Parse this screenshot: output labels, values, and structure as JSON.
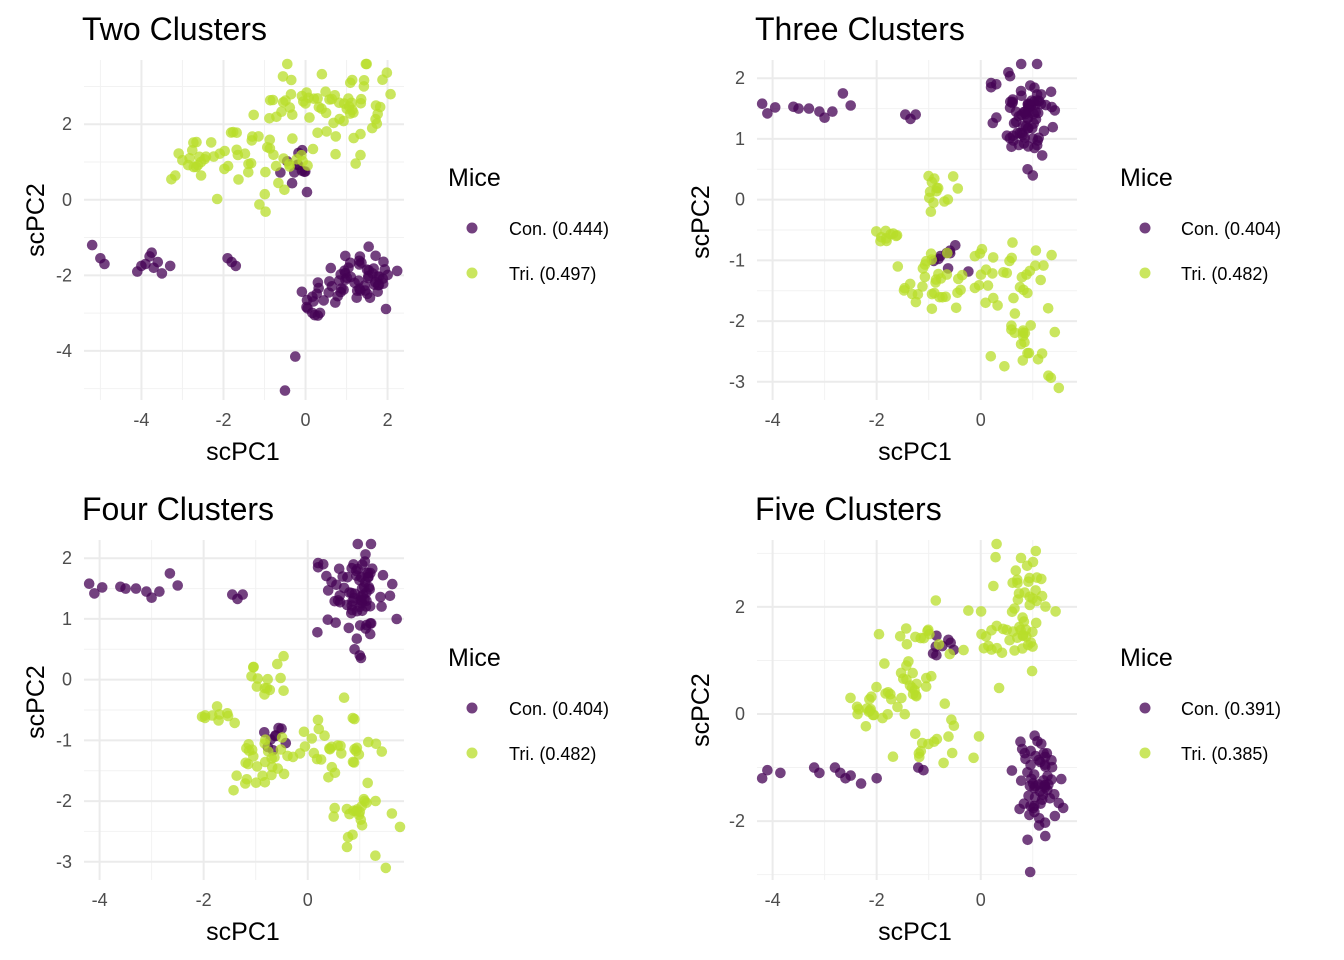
{
  "colors": {
    "con": "#440154",
    "tri": "#b8de29",
    "point_opacity": 0.75
  },
  "chart_data": [
    {
      "type": "scatter",
      "title": "Two Clusters",
      "xlabel": "scPC1",
      "ylabel": "scPC2",
      "xlim": [
        -5.4,
        2.4
      ],
      "ylim": [
        -5.3,
        3.7
      ],
      "xticks": [
        -4,
        -2,
        0,
        2
      ],
      "yticks": [
        -4,
        -2,
        0,
        2
      ],
      "grid": true,
      "legend": {
        "title": "Mice",
        "position": "right",
        "items": [
          {
            "label": "Con. (0.444)",
            "series": "con"
          },
          {
            "label": "Tri. (0.497)",
            "series": "tri"
          }
        ]
      },
      "series": [
        {
          "name": "Con. (0.444)",
          "key": "con",
          "clusters": [
            {
              "cx": 1.3,
              "cy": -2.1,
              "sx": 0.5,
              "sy": 0.35,
              "n": 55
            },
            {
              "cx": 0.2,
              "cy": -2.6,
              "sx": 0.25,
              "sy": 0.3,
              "n": 14
            },
            {
              "cx": -0.1,
              "cy": 1.0,
              "sx": 0.25,
              "sy": 0.3,
              "n": 12
            }
          ],
          "points": [
            [
              -5.2,
              -1.2
            ],
            [
              -5.0,
              -1.55
            ],
            [
              -4.9,
              -1.7
            ],
            [
              -4.1,
              -1.9
            ],
            [
              -3.9,
              -1.7
            ],
            [
              -4.0,
              -1.75
            ],
            [
              -3.8,
              -1.5
            ],
            [
              -3.75,
              -1.4
            ],
            [
              -3.6,
              -1.65
            ],
            [
              -3.7,
              -1.8
            ],
            [
              -3.5,
              -1.95
            ],
            [
              -3.3,
              -1.75
            ],
            [
              -1.9,
              -1.55
            ],
            [
              -1.8,
              -1.65
            ],
            [
              -1.7,
              -1.75
            ],
            [
              -0.25,
              -4.15
            ],
            [
              -0.5,
              -5.05
            ]
          ]
        },
        {
          "name": "Tri. (0.497)",
          "key": "tri",
          "clusters": [
            {
              "cx": 1.2,
              "cy": 2.4,
              "sx": 0.5,
              "sy": 0.6,
              "n": 45
            },
            {
              "cx": -0.2,
              "cy": 2.4,
              "sx": 0.45,
              "sy": 0.55,
              "n": 25
            },
            {
              "cx": -1.5,
              "cy": 1.1,
              "sx": 0.6,
              "sy": 0.45,
              "n": 40
            },
            {
              "cx": -2.9,
              "cy": 1.0,
              "sx": 0.3,
              "sy": 0.25,
              "n": 14
            }
          ],
          "points": []
        }
      ]
    },
    {
      "type": "scatter",
      "title": "Three Clusters",
      "xlabel": "scPC1",
      "ylabel": "scPC2",
      "xlim": [
        -4.3,
        1.85
      ],
      "ylim": [
        -3.3,
        2.3
      ],
      "xticks": [
        -4,
        -2,
        0
      ],
      "yticks": [
        -3,
        -2,
        -1,
        0,
        1,
        2
      ],
      "grid": true,
      "legend": {
        "title": "Mice",
        "position": "right",
        "items": [
          {
            "label": "Con. (0.404)",
            "series": "con"
          },
          {
            "label": "Tri. (0.482)",
            "series": "tri"
          }
        ]
      },
      "series": [
        {
          "name": "Con. (0.404)",
          "key": "con",
          "clusters": [
            {
              "cx": 0.9,
              "cy": 1.35,
              "sx": 0.28,
              "sy": 0.35,
              "n": 75
            },
            {
              "cx": -0.6,
              "cy": -0.95,
              "sx": 0.2,
              "sy": 0.12,
              "n": 9
            }
          ],
          "points": [
            [
              -4.2,
              1.58
            ],
            [
              -4.1,
              1.42
            ],
            [
              -3.95,
              1.52
            ],
            [
              -3.6,
              1.53
            ],
            [
              -3.5,
              1.5
            ],
            [
              -3.3,
              1.5
            ],
            [
              -3.1,
              1.45
            ],
            [
              -3.0,
              1.35
            ],
            [
              -2.85,
              1.45
            ],
            [
              -2.65,
              1.75
            ],
            [
              -2.5,
              1.55
            ],
            [
              -1.45,
              1.4
            ],
            [
              -1.35,
              1.33
            ],
            [
              -1.25,
              1.4
            ],
            [
              0.2,
              1.92
            ],
            [
              0.3,
              1.9
            ],
            [
              0.2,
              1.85
            ],
            [
              0.9,
              0.5
            ],
            [
              1.0,
              0.4
            ]
          ]
        },
        {
          "name": "Tri. (0.482)",
          "key": "tri",
          "clusters": [
            {
              "cx": -0.8,
              "cy": 0.05,
              "sx": 0.15,
              "sy": 0.2,
              "n": 14
            },
            {
              "cx": -1.8,
              "cy": -0.6,
              "sx": 0.15,
              "sy": 0.08,
              "n": 10
            },
            {
              "cx": -0.9,
              "cy": -1.4,
              "sx": 0.3,
              "sy": 0.25,
              "n": 30
            },
            {
              "cx": 0.6,
              "cy": -1.2,
              "sx": 0.4,
              "sy": 0.3,
              "n": 30
            },
            {
              "cx": 1.0,
              "cy": -2.3,
              "sx": 0.35,
              "sy": 0.4,
              "n": 22
            }
          ],
          "points": [
            [
              1.5,
              -3.1
            ],
            [
              1.3,
              -2.9
            ]
          ]
        }
      ]
    },
    {
      "type": "scatter",
      "title": "Four Clusters",
      "xlabel": "scPC1",
      "ylabel": "scPC2",
      "xlim": [
        -4.3,
        1.85
      ],
      "ylim": [
        -3.3,
        2.3
      ],
      "xticks": [
        -4,
        -2,
        0
      ],
      "yticks": [
        -3,
        -2,
        -1,
        0,
        1,
        2
      ],
      "grid": true,
      "legend": {
        "title": "Mice",
        "position": "right",
        "items": [
          {
            "label": "Con. (0.404)",
            "series": "con"
          },
          {
            "label": "Tri. (0.482)",
            "series": "tri"
          }
        ]
      },
      "series": [
        {
          "name": "Con. (0.404)",
          "key": "con",
          "clusters": [
            {
              "cx": 0.9,
              "cy": 1.35,
              "sx": 0.28,
              "sy": 0.35,
              "n": 75
            },
            {
              "cx": -0.6,
              "cy": -0.95,
              "sx": 0.2,
              "sy": 0.12,
              "n": 9
            }
          ],
          "points": [
            [
              -4.2,
              1.58
            ],
            [
              -4.1,
              1.42
            ],
            [
              -3.95,
              1.52
            ],
            [
              -3.6,
              1.53
            ],
            [
              -3.5,
              1.5
            ],
            [
              -3.3,
              1.5
            ],
            [
              -3.1,
              1.45
            ],
            [
              -3.0,
              1.35
            ],
            [
              -2.85,
              1.45
            ],
            [
              -2.65,
              1.75
            ],
            [
              -2.5,
              1.55
            ],
            [
              -1.45,
              1.4
            ],
            [
              -1.35,
              1.33
            ],
            [
              -1.25,
              1.4
            ],
            [
              0.2,
              1.92
            ],
            [
              0.3,
              1.9
            ],
            [
              0.2,
              1.85
            ],
            [
              0.9,
              0.5
            ],
            [
              1.0,
              0.4
            ]
          ]
        },
        {
          "name": "Tri. (0.482)",
          "key": "tri",
          "clusters": [
            {
              "cx": -0.8,
              "cy": 0.05,
              "sx": 0.15,
              "sy": 0.2,
              "n": 14
            },
            {
              "cx": -1.8,
              "cy": -0.6,
              "sx": 0.15,
              "sy": 0.08,
              "n": 10
            },
            {
              "cx": -0.9,
              "cy": -1.4,
              "sx": 0.3,
              "sy": 0.25,
              "n": 30
            },
            {
              "cx": 0.6,
              "cy": -1.2,
              "sx": 0.4,
              "sy": 0.3,
              "n": 30
            },
            {
              "cx": 1.0,
              "cy": -2.3,
              "sx": 0.35,
              "sy": 0.4,
              "n": 22
            }
          ],
          "points": [
            [
              1.5,
              -3.1
            ],
            [
              1.3,
              -2.9
            ]
          ]
        }
      ]
    },
    {
      "type": "scatter",
      "title": "Five Clusters",
      "xlabel": "scPC1",
      "ylabel": "scPC2",
      "xlim": [
        -4.3,
        1.85
      ],
      "ylim": [
        -3.1,
        3.25
      ],
      "xticks": [
        -4,
        -2,
        0
      ],
      "yticks": [
        -2,
        0,
        2
      ],
      "grid": true,
      "legend": {
        "title": "Mice",
        "position": "right",
        "items": [
          {
            "label": "Con. (0.391)",
            "series": "con"
          },
          {
            "label": "Tri. (0.385)",
            "series": "tri"
          }
        ]
      },
      "series": [
        {
          "name": "Con. (0.391)",
          "key": "con",
          "clusters": [
            {
              "cx": 1.1,
              "cy": -1.35,
              "sx": 0.22,
              "sy": 0.45,
              "n": 60
            },
            {
              "cx": -0.8,
              "cy": 1.25,
              "sx": 0.2,
              "sy": 0.15,
              "n": 8
            }
          ],
          "points": [
            [
              -4.2,
              -1.2
            ],
            [
              -4.1,
              -1.05
            ],
            [
              -3.85,
              -1.1
            ],
            [
              -3.2,
              -1.0
            ],
            [
              -3.1,
              -1.1
            ],
            [
              -2.8,
              -1.0
            ],
            [
              -2.7,
              -1.1
            ],
            [
              -2.6,
              -1.2
            ],
            [
              -2.5,
              -1.15
            ],
            [
              -2.3,
              -1.3
            ],
            [
              -2.0,
              -1.2
            ],
            [
              -1.2,
              -1.0
            ],
            [
              -1.1,
              -1.05
            ],
            [
              0.95,
              -2.95
            ],
            [
              0.9,
              -2.35
            ]
          ]
        },
        {
          "name": "Tri. (0.385)",
          "key": "tri",
          "clusters": [
            {
              "cx": 0.9,
              "cy": 2.2,
              "sx": 0.3,
              "sy": 0.55,
              "n": 35
            },
            {
              "cx": 0.5,
              "cy": 1.4,
              "sx": 0.4,
              "sy": 0.2,
              "n": 25
            },
            {
              "cx": -1.0,
              "cy": 1.5,
              "sx": 0.35,
              "sy": 0.25,
              "n": 15
            },
            {
              "cx": -1.5,
              "cy": 0.5,
              "sx": 0.4,
              "sy": 0.3,
              "n": 30
            },
            {
              "cx": -2.2,
              "cy": 0.1,
              "sx": 0.2,
              "sy": 0.2,
              "n": 12
            },
            {
              "cx": -0.7,
              "cy": -0.6,
              "sx": 0.4,
              "sy": 0.25,
              "n": 15
            }
          ],
          "points": []
        }
      ]
    }
  ]
}
